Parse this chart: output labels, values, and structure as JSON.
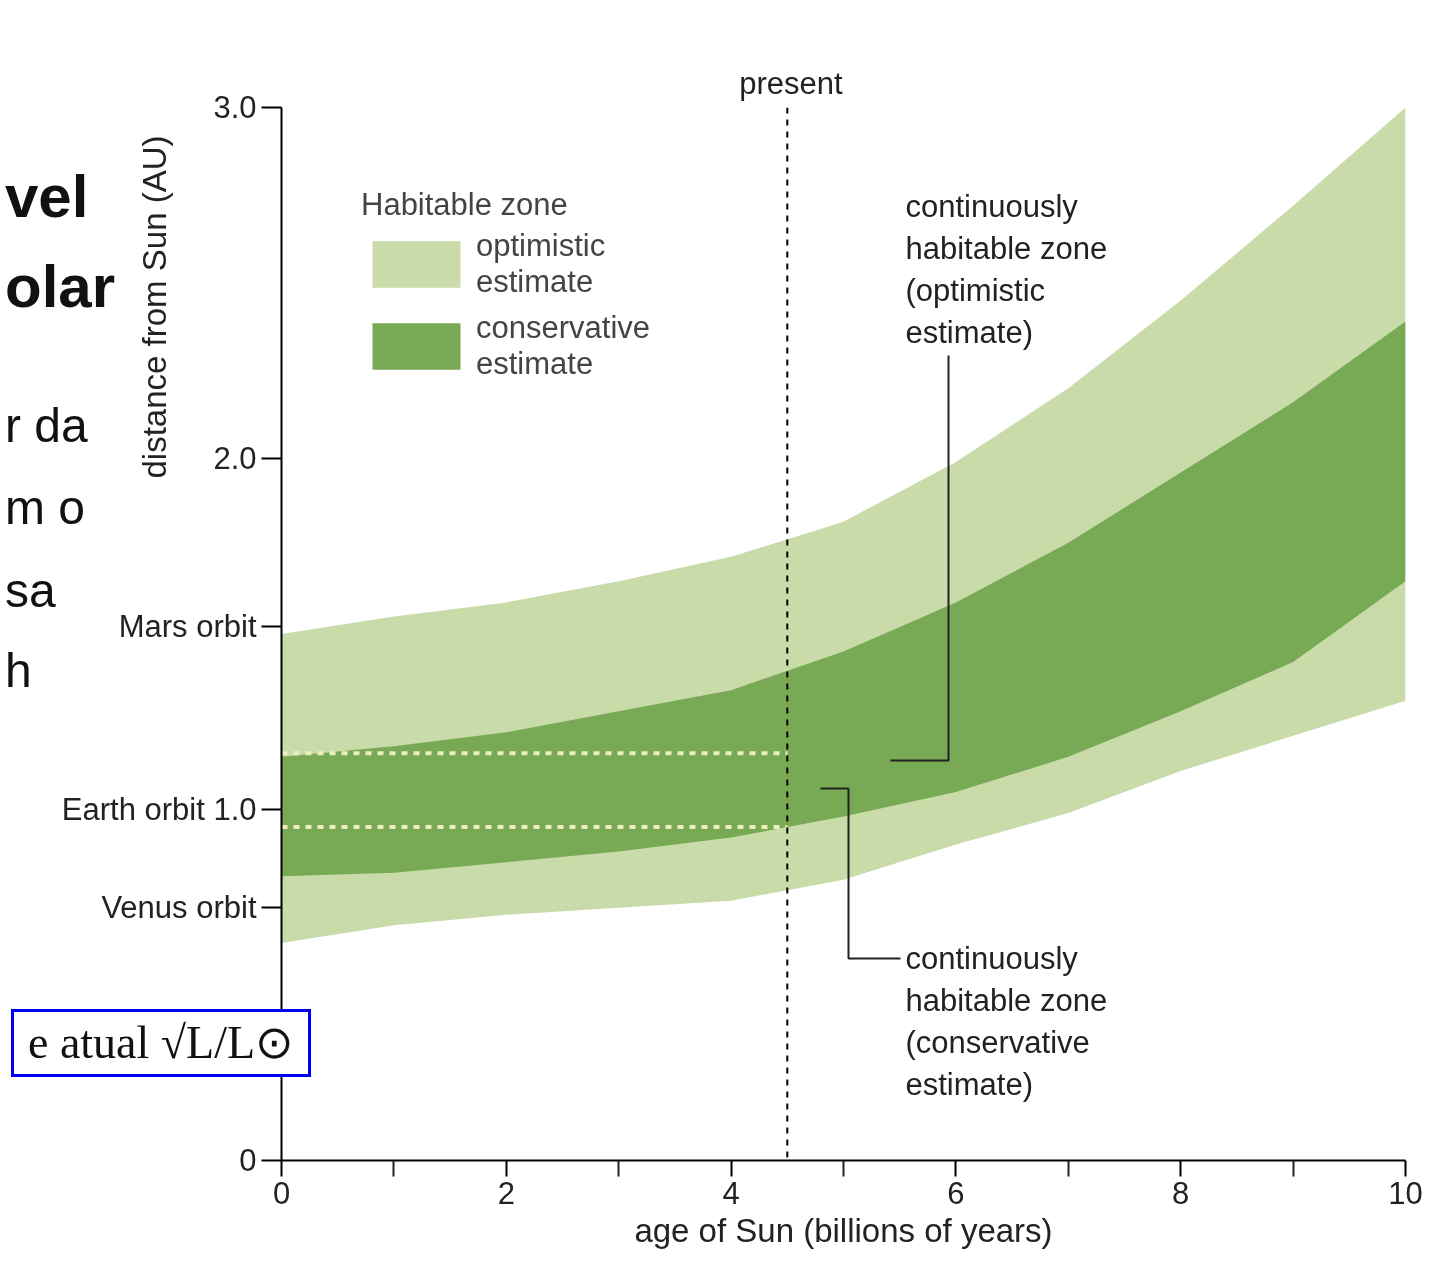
{
  "chart_data": {
    "type": "area",
    "xlabel": "age of Sun (billions of years)",
    "ylabel": "distance from Sun (AU)",
    "legend_title": "Habitable zone",
    "xlim": [
      0,
      10
    ],
    "ylim": [
      0,
      3.0
    ],
    "xticks": [
      0,
      {
        "value": 1,
        "label": null
      },
      2,
      {
        "value": 3,
        "label": null
      },
      4,
      {
        "value": 5,
        "label": null
      },
      6,
      {
        "value": 7,
        "label": null
      },
      8,
      {
        "value": 9,
        "label": null
      },
      10
    ],
    "yticks": [
      0,
      {
        "value": 0.72,
        "label": "Venus orbit"
      },
      {
        "value": 1.0,
        "label": "Earth orbit 1.0"
      },
      {
        "value": 1.52,
        "label": "Mars orbit"
      },
      {
        "value": 2.0,
        "label": "2.0"
      },
      {
        "value": 3.0,
        "label": "3.0"
      }
    ],
    "series": [
      {
        "name": "optimistic estimate",
        "color": "#c9dba9",
        "x": [
          0,
          1,
          2,
          3,
          4,
          5,
          6,
          7,
          8,
          9,
          10
        ],
        "values": [
          null,
          null,
          null,
          null,
          null,
          null,
          null,
          null,
          null,
          null,
          null
        ],
        "lower": [
          0.62,
          0.67,
          0.7,
          0.72,
          0.74,
          0.8,
          0.9,
          0.99,
          1.11,
          1.21,
          1.31
        ],
        "upper": [
          1.5,
          1.55,
          1.59,
          1.65,
          1.72,
          1.82,
          1.99,
          2.2,
          2.45,
          2.72,
          3.0
        ]
      },
      {
        "name": "conservative estimate",
        "color": "#78a955",
        "x": [
          0,
          1,
          2,
          3,
          4,
          5,
          6,
          7,
          8,
          9,
          10
        ],
        "values": [
          null,
          null,
          null,
          null,
          null,
          null,
          null,
          null,
          null,
          null,
          null
        ],
        "lower": [
          0.81,
          0.82,
          0.85,
          0.88,
          0.92,
          0.98,
          1.05,
          1.15,
          1.28,
          1.42,
          1.65
        ],
        "upper": [
          1.15,
          1.18,
          1.22,
          1.28,
          1.34,
          1.45,
          1.59,
          1.76,
          1.96,
          2.16,
          2.39
        ]
      },
      {
        "type": "line",
        "color": "#eeedc0",
        "line_style": "dashed",
        "x": [
          0,
          4.5
        ],
        "values": [
          1.16,
          1.16
        ]
      },
      {
        "type": "line",
        "color": "#eeedc0",
        "line_style": "dashed",
        "x": [
          0,
          4.5
        ],
        "values": [
          0.95,
          0.95
        ]
      }
    ],
    "ref_lines": [
      {
        "axis": "x",
        "value": 4.5,
        "label": "present",
        "color": "#000000",
        "line_style": "dashed"
      }
    ],
    "annotations": [
      "continuously habitable zone (optimistic estimate)",
      "continuously habitable zone (conservative estimate)",
      "vel",
      "olar",
      "r da",
      "m o",
      "sa",
      "h",
      "e atual √L/L⊙"
    ],
    "legend": "top left",
    "grid": false
  }
}
